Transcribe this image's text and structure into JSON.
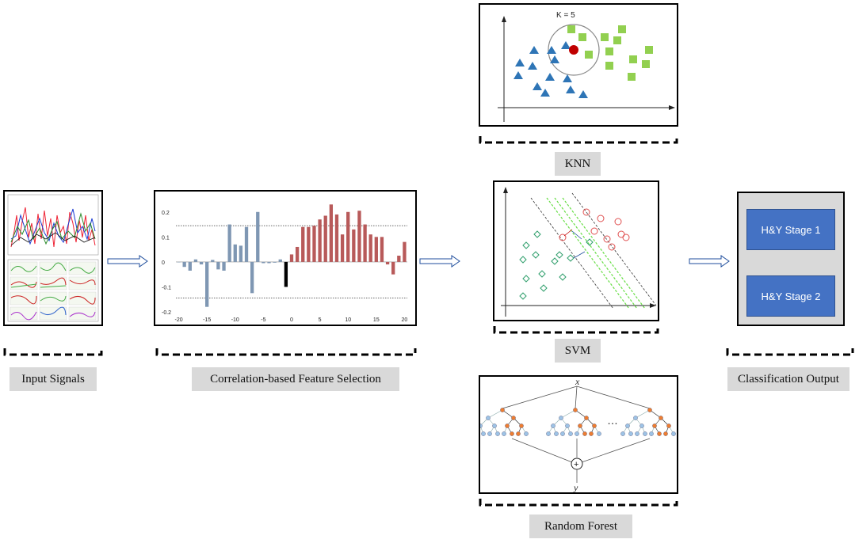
{
  "labels": {
    "input_signals": "Input Signals",
    "feature_selection": "Correlation-based  Feature Selection",
    "knn": "KNN",
    "svm": "SVM",
    "random_forest": "Random Forest",
    "classification_output": "Classification  Output"
  },
  "knn": {
    "k_label": "K = 5"
  },
  "outputs": {
    "stage1": "H&Y Stage 1",
    "stage2": "H&Y Stage 2"
  },
  "random_forest": {
    "input_symbol": "x",
    "output_symbol": "y",
    "ellipsis": "…",
    "combine_symbol": "+"
  },
  "colors": {
    "bar_blue": "#7f97b3",
    "bar_red": "#b85a5a",
    "bar_black": "#000000",
    "knn_triangle": "#2e75b6",
    "knn_square": "#92d050",
    "knn_point": "#c00000",
    "svm_diamond": "#2e9e6b",
    "svm_circle": "#e05050",
    "svm_margin": "#66dd44",
    "output_box": "#4472c4",
    "label_bg": "#d9d9d9",
    "tree_blue": "#9dc3e6",
    "tree_orange": "#ed7d31",
    "arrow_blue": "#1f4e9c"
  },
  "chart_data": {
    "type": "bar",
    "title": "",
    "xlabel": "",
    "ylabel": "",
    "x": [
      -20,
      -19,
      -18,
      -17,
      -16,
      -15,
      -14,
      -13,
      -12,
      -11,
      -10,
      -9,
      -8,
      -7,
      -6,
      -5,
      -4,
      -3,
      -2,
      -1,
      0,
      1,
      2,
      3,
      4,
      5,
      6,
      7,
      8,
      9,
      10,
      11,
      12,
      13,
      14,
      15,
      16,
      17,
      18,
      19,
      20
    ],
    "values": [
      0,
      -0.02,
      -0.035,
      0.01,
      -0.01,
      -0.18,
      0.008,
      -0.03,
      -0.035,
      0.15,
      0.07,
      0.065,
      0.14,
      -0.125,
      0.2,
      -0.005,
      -0.005,
      -0.003,
      0.01,
      -0.1,
      0.03,
      0.06,
      0.14,
      0.14,
      0.145,
      0.17,
      0.185,
      0.23,
      0.19,
      0.11,
      0.2,
      0.13,
      0.205,
      0.15,
      0.11,
      0.1,
      0.1,
      -0.01,
      -0.05,
      0.025,
      0.08
    ],
    "series_colors": [
      "blue",
      "blue",
      "blue",
      "blue",
      "blue",
      "blue",
      "blue",
      "blue",
      "blue",
      "blue",
      "blue",
      "blue",
      "blue",
      "blue",
      "blue",
      "blue",
      "blue",
      "blue",
      "blue",
      "black",
      "red",
      "red",
      "red",
      "red",
      "red",
      "red",
      "red",
      "red",
      "red",
      "red",
      "red",
      "red",
      "red",
      "red",
      "red",
      "red",
      "red",
      "red",
      "red",
      "red",
      "red"
    ],
    "xticks": [
      "-20",
      "-15",
      "-10",
      "-5",
      "0",
      "5",
      "10",
      "15",
      "20"
    ],
    "yticks": [
      "0.2",
      "0.1",
      "0",
      "-0.1",
      "-0.2"
    ],
    "thresholds": [
      0.145,
      -0.145
    ],
    "ylim": [
      -0.2,
      0.25
    ],
    "xlim": [
      -20.5,
      20.5
    ]
  }
}
